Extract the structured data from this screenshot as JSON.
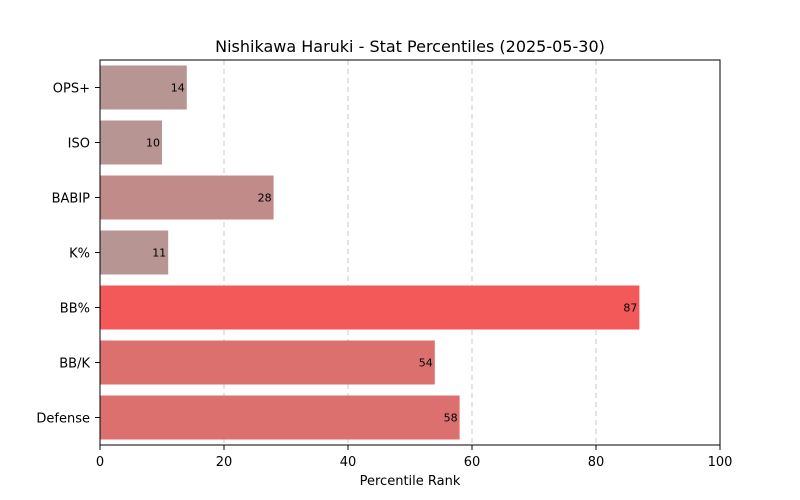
{
  "chart_data": {
    "type": "bar",
    "orientation": "horizontal",
    "title": "Nishikawa Haruki - Stat Percentiles (2025-05-30)",
    "xlabel": "Percentile Rank",
    "ylabel": "",
    "xlim": [
      0,
      100
    ],
    "x_ticks": [
      0,
      20,
      40,
      60,
      80,
      100
    ],
    "grid": "x-dashed",
    "categories": [
      "OPS+",
      "ISO",
      "BABIP",
      "K%",
      "BB%",
      "BB/K",
      "Defense"
    ],
    "values": [
      14,
      10,
      28,
      11,
      87,
      54,
      58
    ],
    "colors": [
      "#b79593",
      "#b79593",
      "#c08b89",
      "#b79593",
      "#f35959",
      "#dc706f",
      "#dc706f"
    ]
  }
}
